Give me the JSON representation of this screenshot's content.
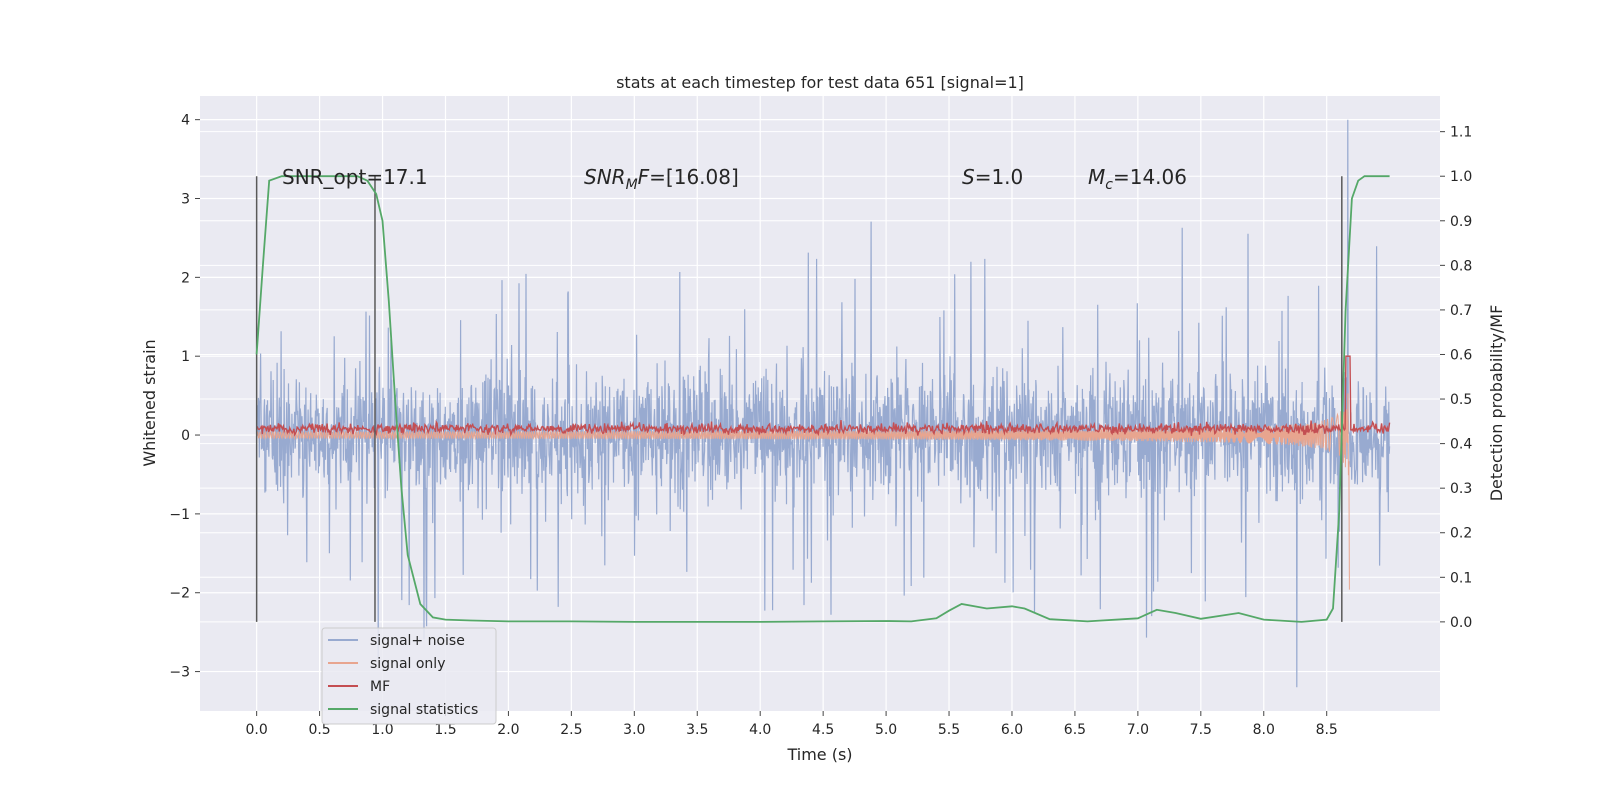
{
  "chart_data": {
    "type": "line",
    "title": "stats at each timestep for test data 651 [signal=1]",
    "xlabel": "Time (s)",
    "ylabel": "Whitened strain",
    "y2label": "Detection probability/MF",
    "xlim": [
      -0.45,
      9.4
    ],
    "ylim": [
      -3.5,
      4.3
    ],
    "y2lim": [
      -0.2,
      1.18
    ],
    "xticks": [
      "0.0",
      "0.5",
      "1.0",
      "1.5",
      "2.0",
      "2.5",
      "3.0",
      "3.5",
      "4.0",
      "4.5",
      "5.0",
      "5.5",
      "6.0",
      "6.5",
      "7.0",
      "7.5",
      "8.0",
      "8.5"
    ],
    "yticks": [
      "4",
      "3",
      "2",
      "1",
      "0",
      "−1",
      "−2",
      "−3"
    ],
    "y2ticks": [
      "1.1",
      "1.0",
      "0.9",
      "0.8",
      "0.7",
      "0.6",
      "0.5",
      "0.4",
      "0.3",
      "0.2",
      "0.1",
      "0.0"
    ],
    "grid": true,
    "legend_position": "lower-left",
    "colors": {
      "background": "#eaeaf2",
      "grid": "#ffffff",
      "signal_noise": "#98aad0",
      "signal_only": "#e8a58f",
      "mf": "#c44e52",
      "statistics": "#55a868",
      "vlines": "#595959"
    },
    "series": [
      {
        "name": "signal+ noise",
        "description_range": [
          -2.6,
          4.0
        ],
        "x_range": [
          0.0,
          9.0
        ]
      },
      {
        "name": "signal only",
        "x_range": [
          0.0,
          8.68
        ],
        "envelope_end": 1.05
      },
      {
        "name": "MF",
        "x_range": [
          0.0,
          9.0
        ],
        "baseline": 0.08
      },
      {
        "name": "signal statistics",
        "axis": "right",
        "x": [
          0.0,
          0.05,
          0.1,
          0.2,
          0.3,
          0.5,
          0.7,
          0.8,
          0.88,
          0.95,
          1.0,
          1.05,
          1.1,
          1.15,
          1.2,
          1.3,
          1.4,
          1.5,
          1.7,
          2.0,
          2.5,
          3.0,
          4.0,
          4.5,
          5.0,
          5.2,
          5.4,
          5.5,
          5.6,
          5.8,
          6.0,
          6.1,
          6.3,
          6.6,
          7.0,
          7.15,
          7.3,
          7.5,
          7.8,
          8.0,
          8.3,
          8.5,
          8.55,
          8.6,
          8.65,
          8.7,
          8.75,
          8.8,
          9.0
        ],
        "y": [
          0.6,
          0.8,
          0.99,
          1.0,
          1.0,
          1.0,
          1.0,
          1.0,
          0.99,
          0.96,
          0.9,
          0.72,
          0.5,
          0.3,
          0.15,
          0.04,
          0.01,
          0.005,
          0.003,
          0.001,
          0.001,
          0.0,
          0.0,
          0.001,
          0.002,
          0.001,
          0.008,
          0.025,
          0.04,
          0.03,
          0.035,
          0.03,
          0.006,
          0.001,
          0.008,
          0.027,
          0.02,
          0.007,
          0.02,
          0.005,
          0.0,
          0.005,
          0.03,
          0.25,
          0.7,
          0.95,
          0.99,
          1.0,
          1.0
        ]
      }
    ],
    "vlines": [
      0.0,
      0.94,
      8.62
    ],
    "annotations": [
      {
        "text": "SNR_opt=17.1",
        "x": 0.2,
        "y": 3.2
      },
      {
        "text_main": "SNR",
        "sub": "M",
        "tail": "F=[16.08]",
        "x": 2.6,
        "y": 3.2
      },
      {
        "text_main": "S",
        "tail": "=1.0",
        "x": 5.6,
        "y": 3.2
      },
      {
        "text_main": "M",
        "sub": "c",
        "tail": "=14.06",
        "x": 6.6,
        "y": 3.2
      }
    ]
  }
}
